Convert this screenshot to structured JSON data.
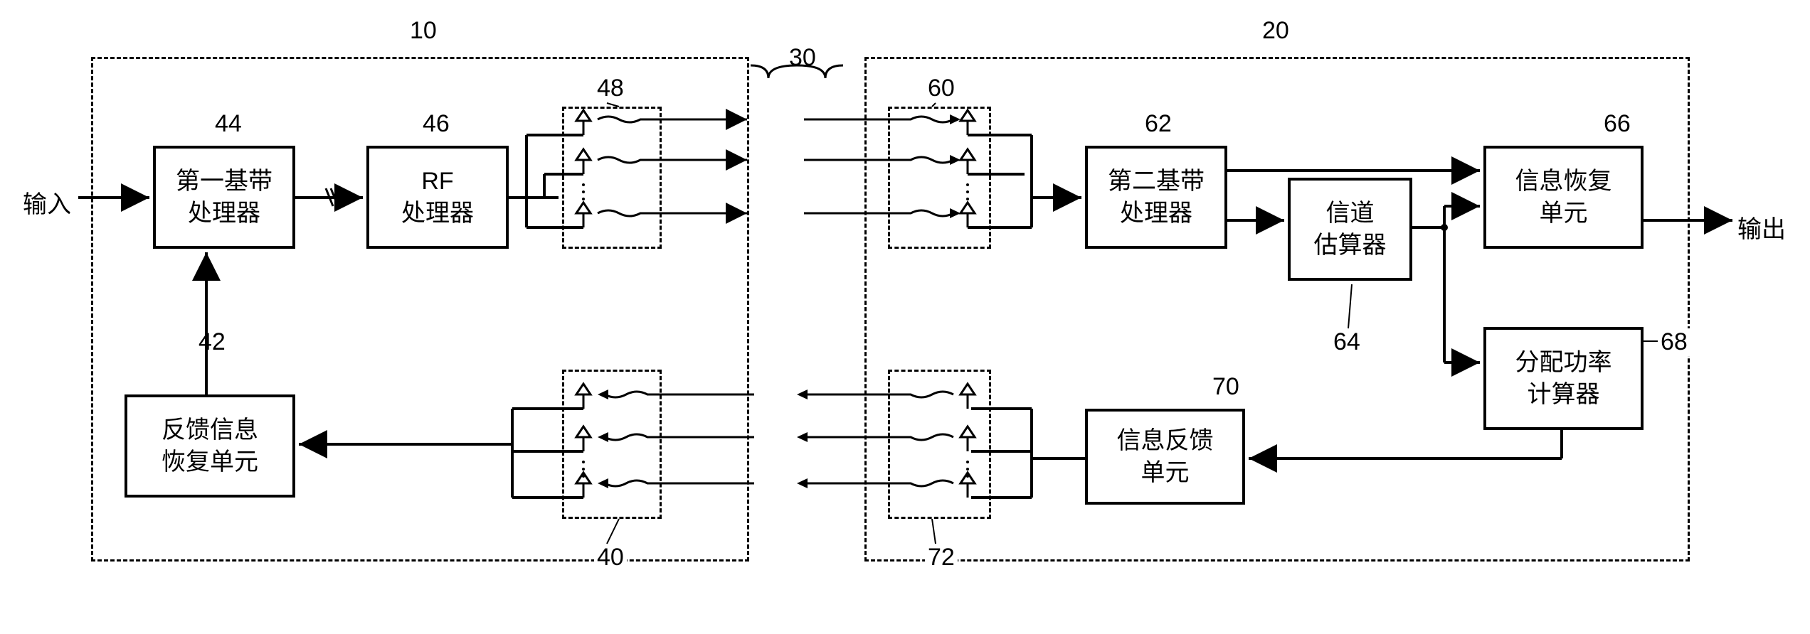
{
  "io": {
    "input": "输入",
    "output": "输出"
  },
  "transmitter": {
    "ref": "10",
    "block44": {
      "ref": "44",
      "text": "第一基带\n处理器"
    },
    "block46": {
      "ref": "46",
      "text": "RF\n处理器"
    },
    "block42": {
      "ref": "42",
      "text": "反馈信息\n恢复单元"
    },
    "antenna48": {
      "ref": "48"
    },
    "antenna40": {
      "ref": "40"
    }
  },
  "channel": {
    "ref": "30"
  },
  "receiver": {
    "ref": "20",
    "block62": {
      "ref": "62",
      "text": "第二基带\n处理器"
    },
    "block64": {
      "ref": "64",
      "text": "信道\n估算器"
    },
    "block66": {
      "ref": "66",
      "text": "信息恢复\n单元"
    },
    "block68": {
      "ref": "68",
      "text": "分配功率\n计算器"
    },
    "block70": {
      "ref": "70",
      "text": "信息反馈\n单元"
    },
    "antenna60": {
      "ref": "60"
    },
    "antenna72": {
      "ref": "72"
    }
  },
  "style": {
    "stroke": "#000000",
    "stroke_width": 3,
    "arrow_width": 4,
    "dash": "10,8"
  }
}
